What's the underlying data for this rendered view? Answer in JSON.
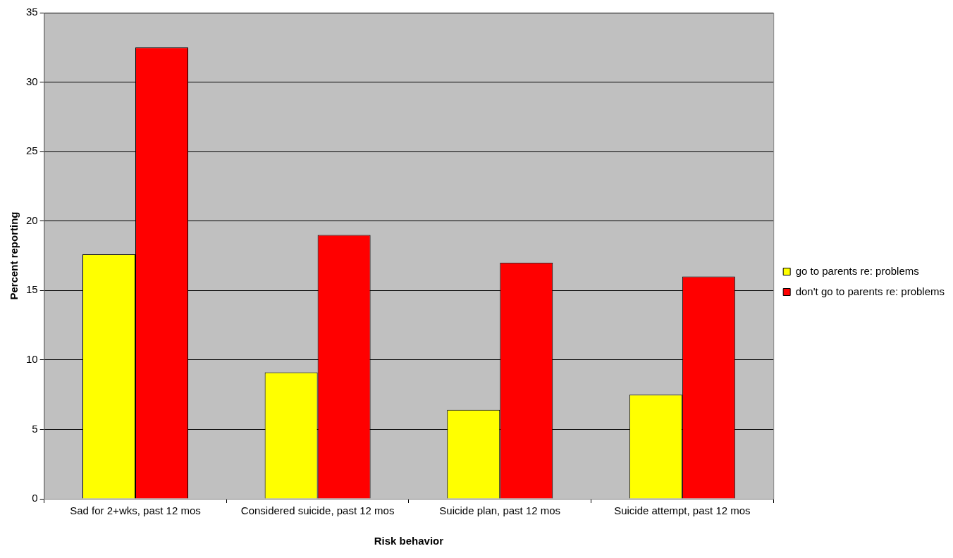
{
  "chart_data": {
    "type": "bar",
    "xlabel": "Risk behavior",
    "ylabel": "Percent reporting",
    "categories": [
      "Sad for 2+wks, past 12 mos",
      "Considered suicide, past 12 mos",
      "Suicide plan, past 12 mos",
      "Suicide attempt, past 12 mos"
    ],
    "series": [
      {
        "name": "go to parents re: problems",
        "color": "#ffff00",
        "values": [
          17.6,
          9.1,
          6.4,
          7.5
        ]
      },
      {
        "name": "don't go to parents re: problems",
        "color": "#ff0000",
        "values": [
          32.5,
          19.0,
          17.0,
          16.0
        ]
      }
    ],
    "ylim": [
      0,
      35
    ],
    "yticks": [
      0,
      5,
      10,
      15,
      20,
      25,
      30,
      35
    ],
    "grid": "y",
    "legend": "right"
  }
}
